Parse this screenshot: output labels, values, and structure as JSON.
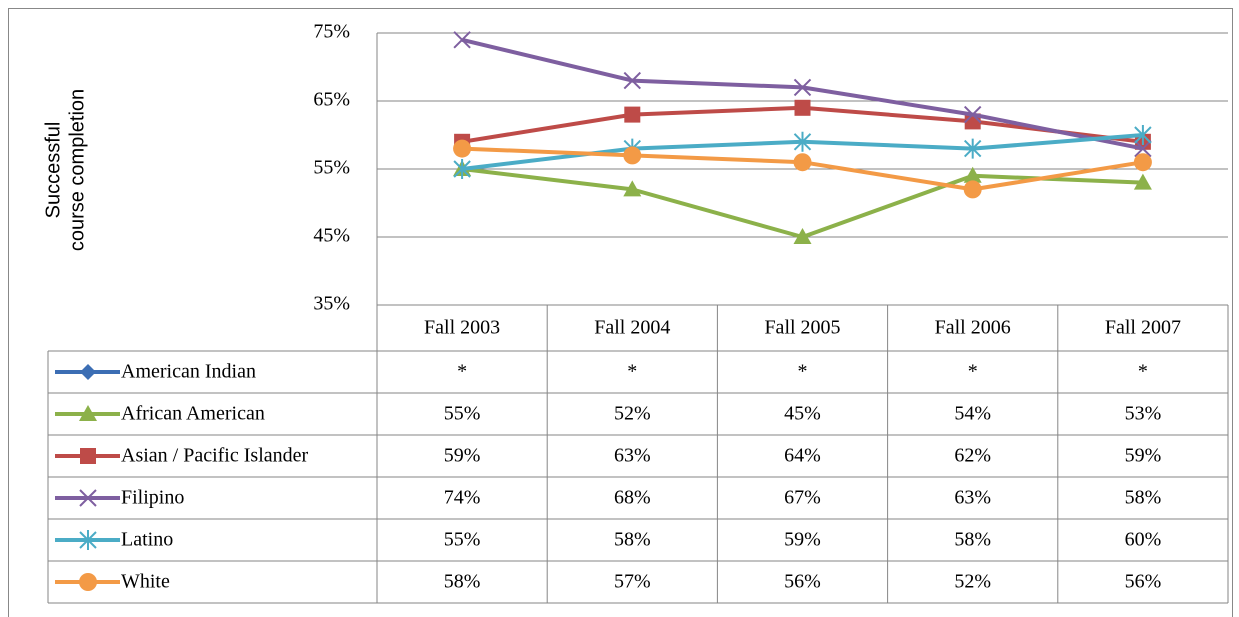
{
  "chart_data": {
    "type": "line",
    "ylabel": [
      "Successful",
      "course completion"
    ],
    "categories": [
      "Fall 2003",
      "Fall 2004",
      "Fall 2005",
      "Fall 2006",
      "Fall 2007"
    ],
    "ylim": [
      35,
      75
    ],
    "yticks": [
      {
        "value": 35,
        "label": "35%"
      },
      {
        "value": 45,
        "label": "45%"
      },
      {
        "value": 55,
        "label": "55%"
      },
      {
        "value": 65,
        "label": "65%"
      },
      {
        "value": 75,
        "label": "75%"
      }
    ],
    "grid": true,
    "series": [
      {
        "name": "American Indian",
        "color": "#3c6eb4",
        "marker": "diamond",
        "values": [
          null,
          null,
          null,
          null,
          null
        ],
        "value_labels": [
          "*",
          "*",
          "*",
          "*",
          "*"
        ]
      },
      {
        "name": "African American",
        "color": "#8cb14a",
        "marker": "triangle",
        "values": [
          55,
          52,
          45,
          54,
          53
        ],
        "value_labels": [
          "55%",
          "52%",
          "45%",
          "54%",
          "53%"
        ]
      },
      {
        "name": "Asian / Pacific Islander",
        "color": "#be4b48",
        "marker": "square",
        "values": [
          59,
          63,
          64,
          62,
          59
        ],
        "value_labels": [
          "59%",
          "63%",
          "64%",
          "62%",
          "59%"
        ]
      },
      {
        "name": "Filipino",
        "color": "#7e5fa0",
        "marker": "x",
        "values": [
          74,
          68,
          67,
          63,
          58
        ],
        "value_labels": [
          "74%",
          "68%",
          "67%",
          "63%",
          "58%"
        ]
      },
      {
        "name": "Latino",
        "color": "#4bacc6",
        "marker": "star",
        "values": [
          55,
          58,
          59,
          58,
          60
        ],
        "value_labels": [
          "55%",
          "58%",
          "59%",
          "58%",
          "60%"
        ]
      },
      {
        "name": "White",
        "color": "#f39a46",
        "marker": "circle",
        "values": [
          58,
          57,
          56,
          52,
          56
        ],
        "value_labels": [
          "58%",
          "57%",
          "56%",
          "52%",
          "56%"
        ]
      }
    ]
  }
}
